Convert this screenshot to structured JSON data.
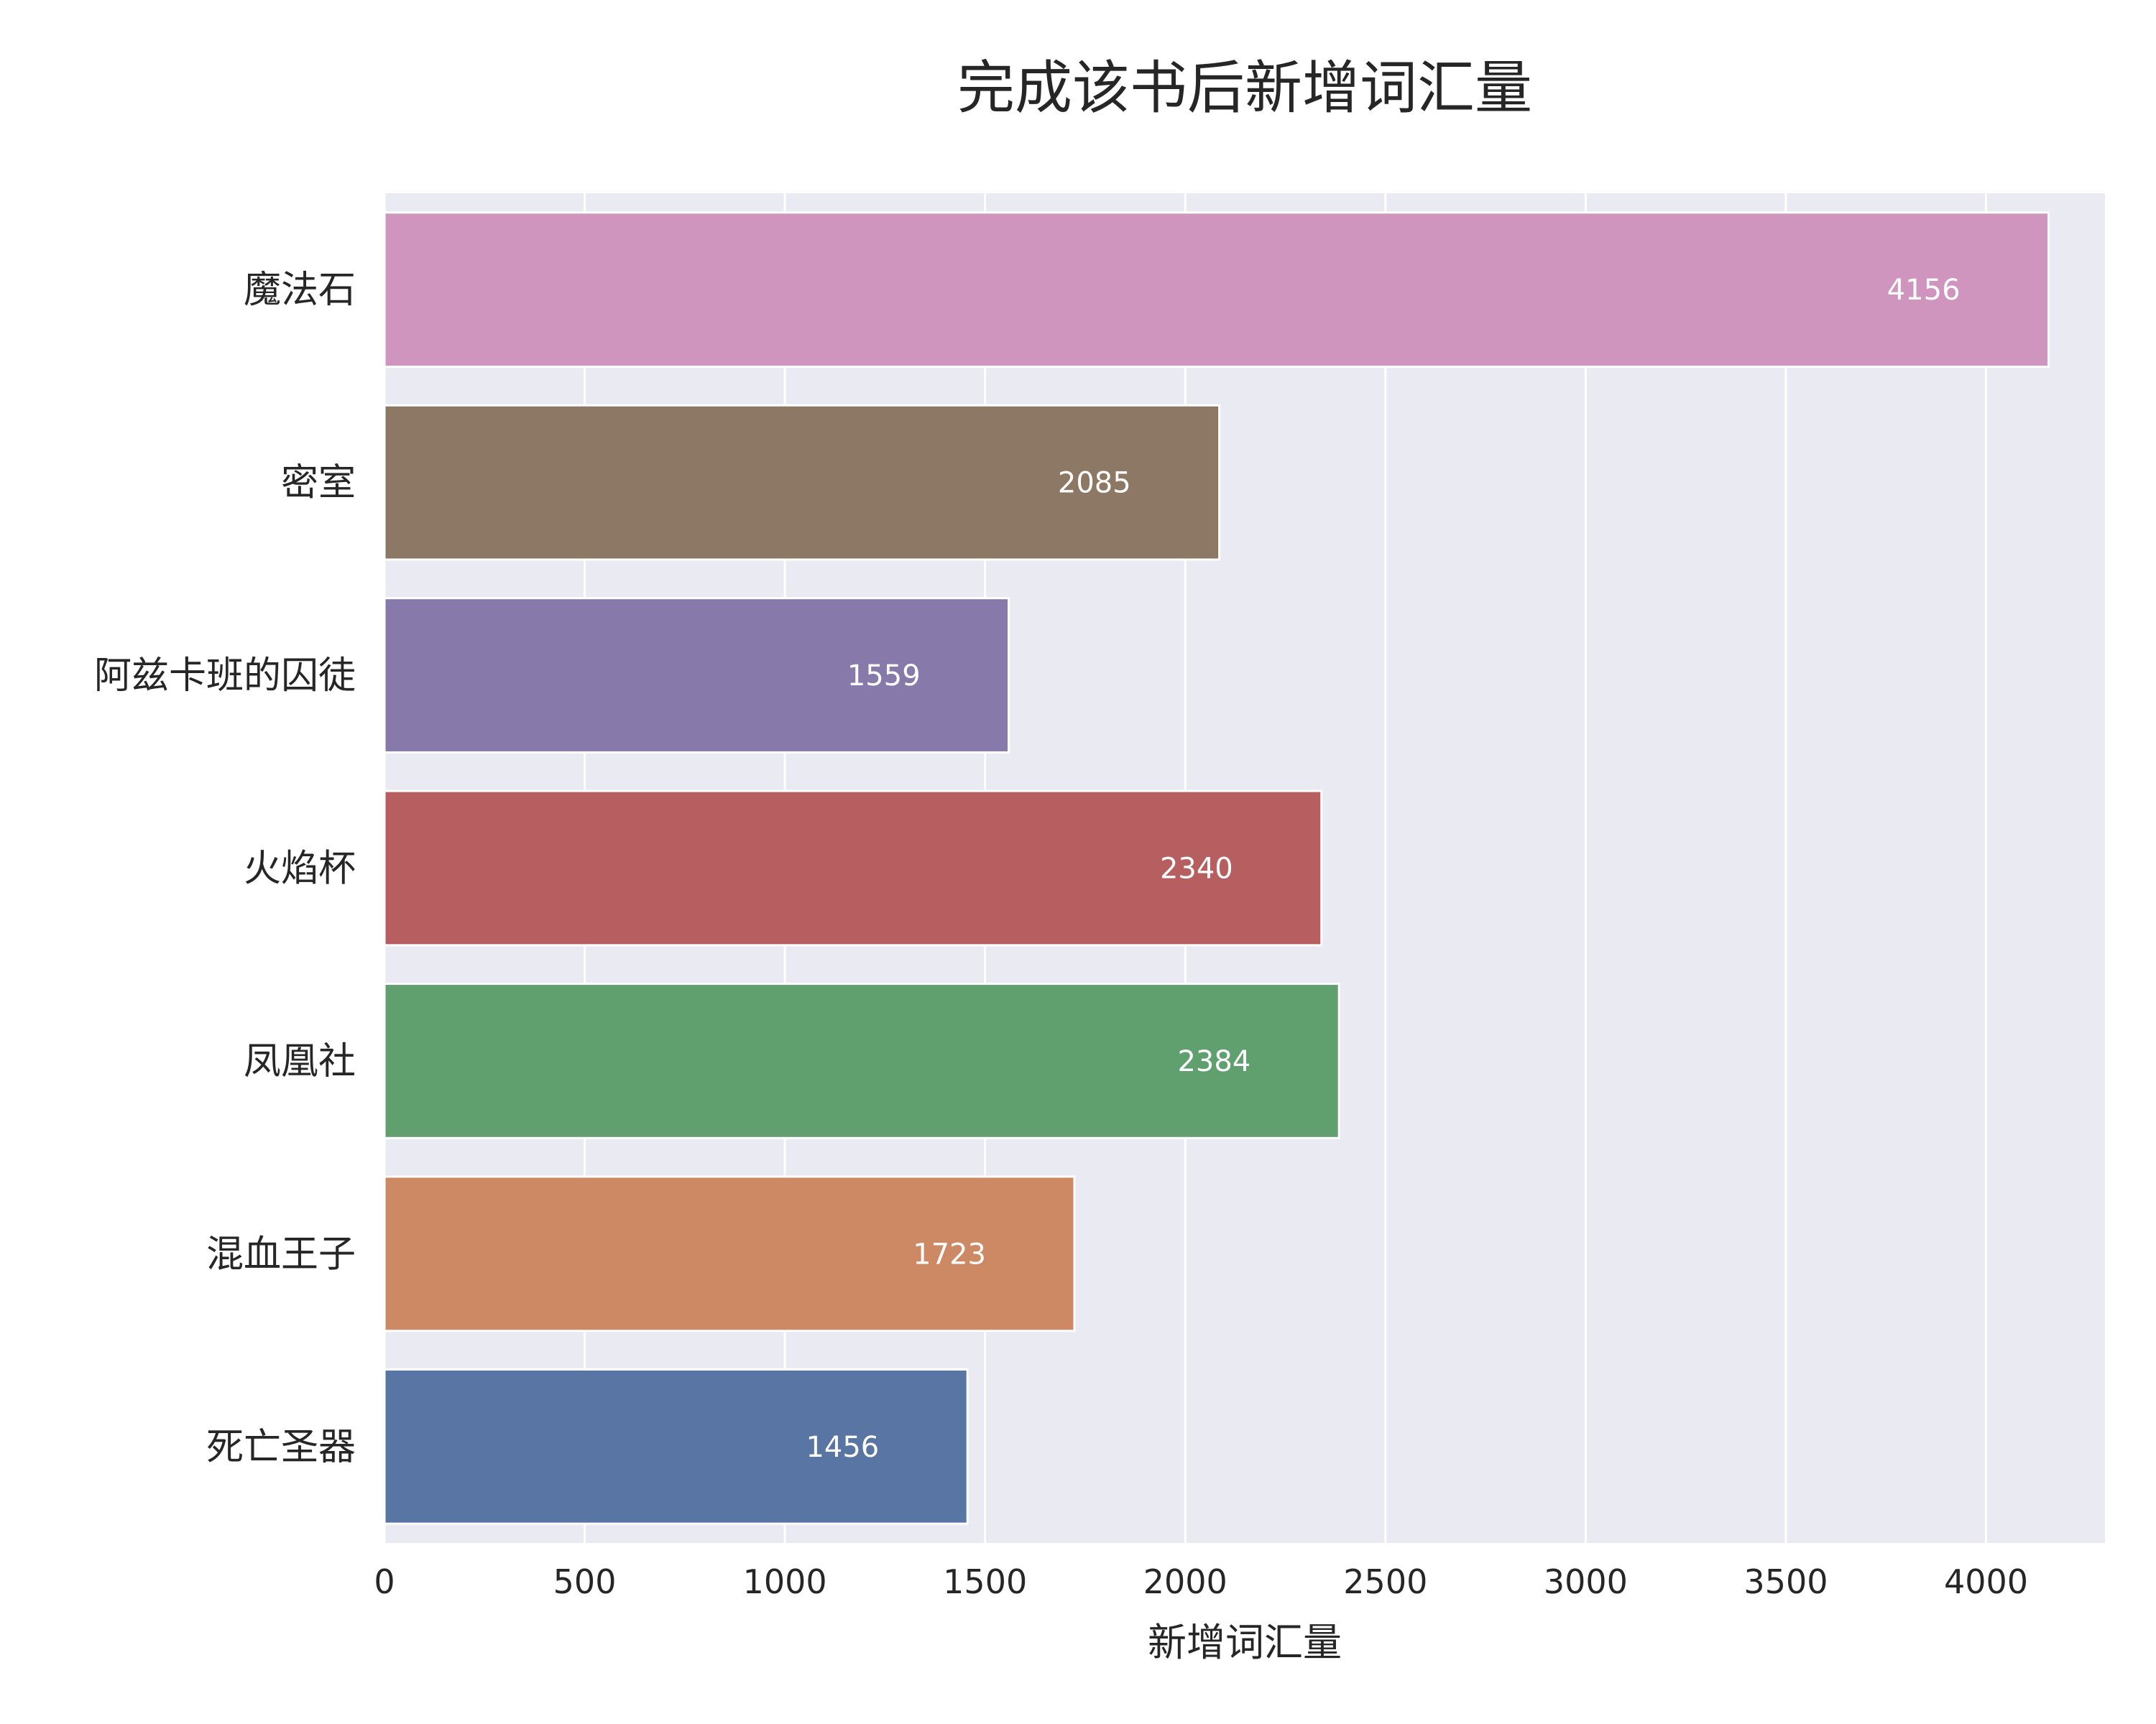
{
  "chart_data": {
    "type": "bar",
    "orientation": "horizontal",
    "title": "完成该书后新增词汇量",
    "xlabel": "新增词汇量",
    "ylabel": "",
    "categories": [
      "魔法石",
      "密室",
      "阿兹卡班的囚徒",
      "火焰杯",
      "凤凰社",
      "混血王子",
      "死亡圣器"
    ],
    "values": [
      4156,
      2085,
      1559,
      2340,
      2384,
      1723,
      1456
    ],
    "value_labels": [
      "4156",
      "2085",
      "1559",
      "2340",
      "2384",
      "1723",
      "1456"
    ],
    "colors": [
      "#CF95BF",
      "#8C7864",
      "#877AAB",
      "#B65E60",
      "#609F6E",
      "#CC8963",
      "#5975A4"
    ],
    "xlim": [
      0,
      4297
    ],
    "xticks": [
      0,
      500,
      1000,
      1500,
      2000,
      2500,
      3000,
      3500,
      4000
    ],
    "xtick_labels": [
      "0",
      "500",
      "1000",
      "1500",
      "2000",
      "2500",
      "3000",
      "3500",
      "4000"
    ],
    "grid": true,
    "background": "#EAEAF2",
    "legend": "none"
  }
}
